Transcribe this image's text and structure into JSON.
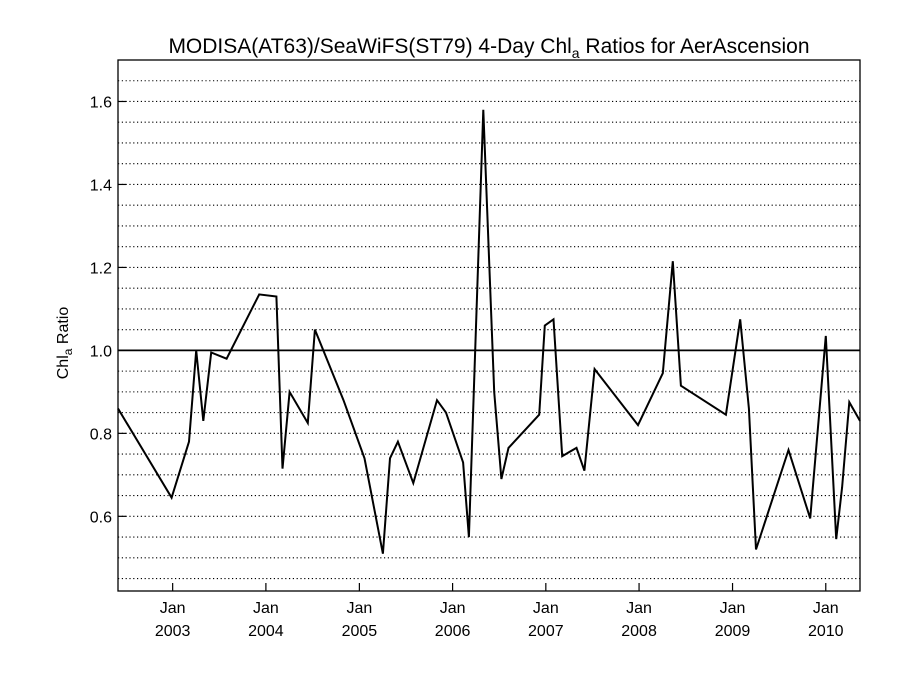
{
  "chart_data": {
    "type": "line",
    "title": {
      "pre": "MODISA(AT63)/SeaWiFS(ST79) 4-Day Chl",
      "sub": "a",
      "post": " Ratios for AerAscension"
    },
    "ylabel": {
      "pre": "Chl",
      "sub": "a",
      "post": " Ratio"
    },
    "xlim": [
      "2002-06-01",
      "2010-05-15"
    ],
    "ylim": [
      0.42,
      1.7
    ],
    "y_ticks": [
      0.6,
      0.8,
      1.0,
      1.2,
      1.4,
      1.6
    ],
    "y_tick_labels": [
      "0.6",
      "0.8",
      "1.0",
      "1.2",
      "1.4",
      "1.6"
    ],
    "x_ticks": [
      "2003-01-01",
      "2004-01-01",
      "2005-01-01",
      "2006-01-01",
      "2007-01-01",
      "2008-01-01",
      "2009-01-01",
      "2010-01-01"
    ],
    "x_tick_labels": [
      {
        "month": "Jan",
        "year": "2003"
      },
      {
        "month": "Jan",
        "year": "2004"
      },
      {
        "month": "Jan",
        "year": "2005"
      },
      {
        "month": "Jan",
        "year": "2006"
      },
      {
        "month": "Jan",
        "year": "2007"
      },
      {
        "month": "Jan",
        "year": "2008"
      },
      {
        "month": "Jan",
        "year": "2009"
      },
      {
        "month": "Jan",
        "year": "2010"
      }
    ],
    "grid": "horizontal dotted every 0.05",
    "reference_line": 1.0,
    "series": [
      {
        "x": [
          "2002-06-01",
          "2002-12-28",
          "2003-03-06",
          "2003-04-03",
          "2003-05-01",
          "2003-06-01",
          "2003-07-31",
          "2003-12-06",
          "2004-02-11",
          "2004-03-06",
          "2004-04-03",
          "2004-06-13",
          "2004-07-11",
          "2004-10-31",
          "2005-01-21",
          "2005-04-03",
          "2005-05-01",
          "2005-06-01",
          "2005-07-31",
          "2005-11-01",
          "2005-12-06",
          "2006-02-11",
          "2006-03-06",
          "2006-05-01",
          "2006-06-13",
          "2006-07-11",
          "2006-08-08",
          "2006-12-06",
          "2006-12-28",
          "2007-01-31",
          "2007-03-06",
          "2007-04-03",
          "2007-05-01",
          "2007-06-01",
          "2007-07-11",
          "2007-12-28",
          "2008-04-03",
          "2008-05-12",
          "2008-06-13",
          "2008-12-06",
          "2009-01-31",
          "2009-03-06",
          "2009-04-03",
          "2009-08-08",
          "2009-11-01",
          "2010-01-01",
          "2010-02-11",
          "2010-03-06",
          "2010-04-03",
          "2010-05-15"
        ],
        "y": [
          0.86,
          0.645,
          0.78,
          1.0,
          0.83,
          0.995,
          0.98,
          1.135,
          1.13,
          0.715,
          0.9,
          0.825,
          1.05,
          0.88,
          0.74,
          0.51,
          0.74,
          0.78,
          0.68,
          0.88,
          0.85,
          0.73,
          0.55,
          1.58,
          0.9,
          0.69,
          0.765,
          0.845,
          1.06,
          1.075,
          0.745,
          0.755,
          0.765,
          0.71,
          0.955,
          0.82,
          0.945,
          1.215,
          0.915,
          0.845,
          1.075,
          0.86,
          0.52,
          0.76,
          0.595,
          1.035,
          0.545,
          0.67,
          0.875,
          0.83
        ]
      }
    ]
  }
}
